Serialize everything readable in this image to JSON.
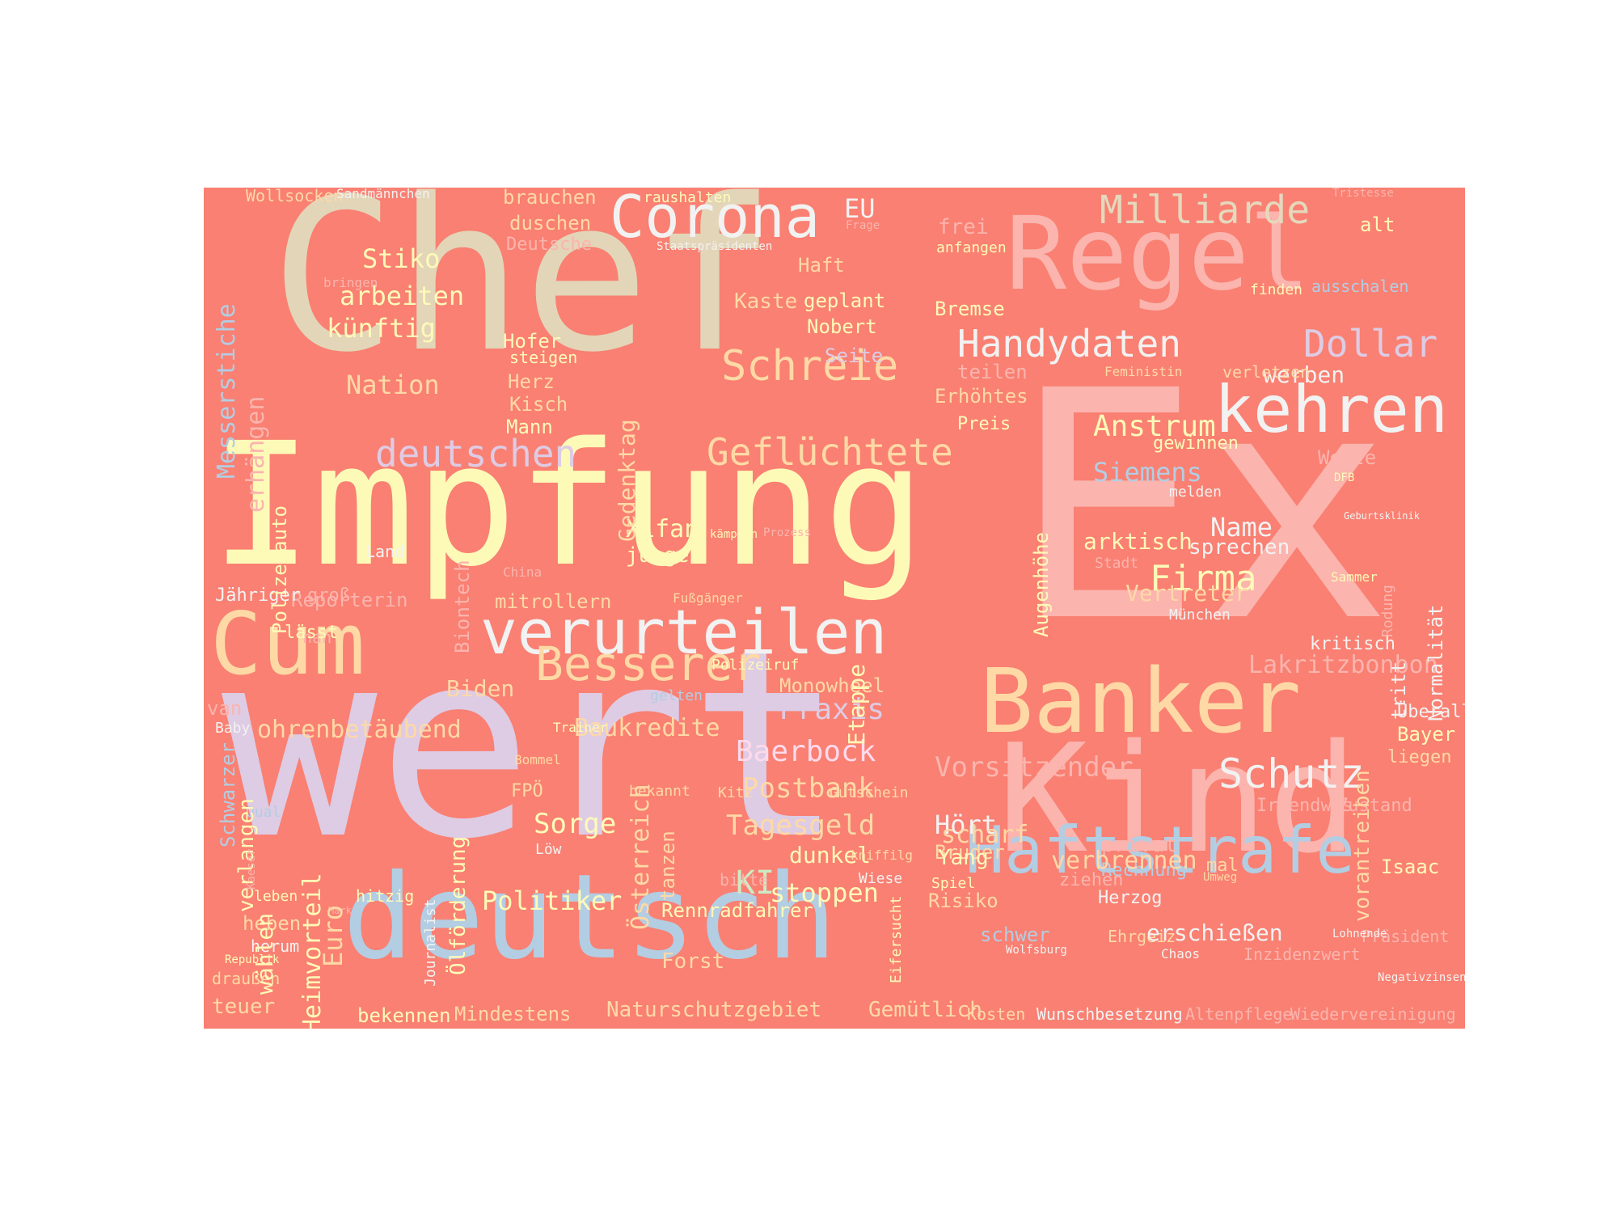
{
  "background": "#f98072",
  "palette": {
    "beige": "#e3d5b8",
    "cream": "#fdfab8",
    "pink": "#fbb4ae",
    "peach": "#fed9a6",
    "lavender": "#decbe4",
    "blue": "#b3cde3",
    "mint": "#ccebc5",
    "white": "#f2f2f2",
    "rose": "#fddaec",
    "gold": "#e5d8bd"
  },
  "words": [
    "Chef",
    "Ex",
    "Impfung",
    "wert",
    "deutsch",
    "Kind",
    "Regel",
    "Cum",
    "Banker",
    "Haftstrafe",
    "kehren",
    "verurteilen",
    "Corona",
    "Schreie",
    "Besserer",
    "Milliarde",
    "Handydaten",
    "Dollar",
    "Schutz",
    "deutschen",
    "Geflüchtete",
    "Stiko",
    "arbeiten",
    "künftig",
    "Nation",
    "Anstrum",
    "Firma",
    "Siemens",
    "Name",
    "arktisch",
    "sprechen",
    "Vertreter",
    "Lakritzbonbon",
    "Baerbock",
    "Postbank",
    "Tagesgeld",
    "Sorge",
    "Politiker",
    "stoppen",
    "KI",
    "dunkel",
    "Hört",
    "Vorsitzender",
    "Praxis",
    "Monowheel",
    "Baukredite",
    "ohrenbetäubend",
    "Biden",
    "Xifan",
    "junge",
    "mitrollern",
    "Reporterin",
    "Kaste",
    "geplant",
    "Nobert",
    "Seite",
    "Herz",
    "Kisch",
    "Mann",
    "Hofer",
    "steigen",
    "brauchen",
    "duschen",
    "Deutsche",
    "raushalten",
    "Staatspräsidenten",
    "EU",
    "Frage",
    "frei",
    "anfangen",
    "Haft",
    "alt",
    "finden",
    "ausschalen",
    "Bremse",
    "teilen",
    "Erhöhtes",
    "Preis",
    "werben",
    "verletzen",
    "Feministin",
    "Welle",
    "gewinnen",
    "melden",
    "DFB",
    "Stadt",
    "München",
    "kritisch",
    "Überall",
    "Bayer",
    "liegen",
    "Zustand",
    "Irgendwas",
    "Isaac",
    "Herzog",
    "Rechnung",
    "privat",
    "mal",
    "Umweg",
    "Ehrgeiz",
    "Chaos",
    "Inzidenzwert",
    "Präsident",
    "Wunschbesetzung",
    "Altenpflege",
    "Wiedervereinigung",
    "Kosten",
    "Gemütlich",
    "Naturschutzgebiet",
    "Mindestens",
    "bekennen",
    "teuer",
    "draußen",
    "Republik",
    "herum",
    "heben",
    "leben",
    "hitzig",
    "Mark",
    "Forst",
    "Rennradfahrer",
    "Risiko",
    "schwer",
    "Wolfsburg",
    "erschießen",
    "Bruder",
    "ziehen",
    "bitte",
    "Wiese",
    "Löw",
    "FPÖ",
    "Spiel",
    "Yang",
    "scharf",
    "verbrennen",
    "kniffilg",
    "Gutschein",
    "Kitz",
    "bekannt",
    "Bommel",
    "Trainer",
    "gelten",
    "Qual",
    "Baby",
    "van",
    "nan",
    "groß",
    "Jähriger",
    "lässt",
    "Fußgänger",
    "Polizeiruf",
    "kämpfen",
    "Prozess",
    "China",
    "Land",
    "bringen",
    "Wollsocken",
    "Sandmännchen",
    "Tristesse",
    "Geburtsklinik",
    "Sammer",
    "Lohnende",
    "Negativzinsen",
    "Messerstiche",
    "erhängen",
    "Gedenktag",
    "Polizeiauto",
    "Biontech",
    "Etappe",
    "Augenhöhe",
    "zufällig",
    "Rodung",
    "tritt",
    "Normalität",
    "Schwarzer",
    "verlangen",
    "wählen",
    "Kaeser",
    "Euro",
    "Heimvorteil",
    "Journalist",
    "Ölförderung",
    "Österreich",
    "tanzen",
    "Eifersucht",
    "vorantreiben"
  ]
}
